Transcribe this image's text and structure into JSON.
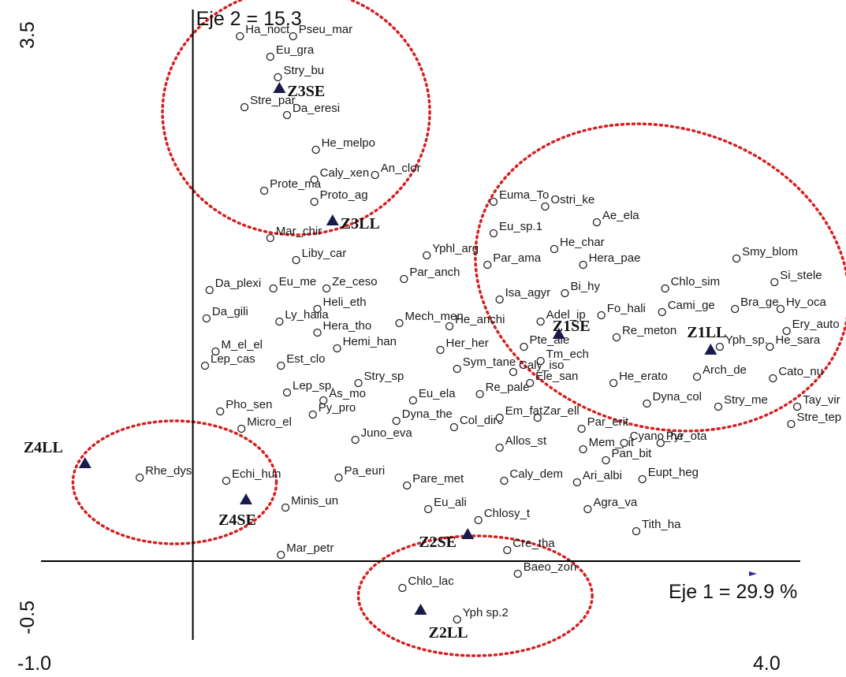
{
  "chart_data": {
    "type": "scatter",
    "x_axis": {
      "title": "Eje 1 = 29.9 %",
      "min": -1.0,
      "max": 4.0,
      "tick_labels": [
        "-1.0",
        "4.0"
      ]
    },
    "y_axis": {
      "title": "Eje 2 = 15.3",
      "min": -0.5,
      "max": 3.5,
      "tick_labels": [
        "-0.5",
        "3.5"
      ]
    },
    "grid": false,
    "colors": {
      "species_marker": "#222222",
      "site_marker": "#1a1a4d",
      "group_outline": "#d42020"
    },
    "sites": [
      {
        "label": "Z1LL",
        "x": 3.41,
        "y": 1.34
      },
      {
        "label": "Z1SE",
        "x": 2.41,
        "y": 1.44
      },
      {
        "label": "Z2LL",
        "x": 1.5,
        "y": -0.31
      },
      {
        "label": "Z2SE",
        "x": 1.81,
        "y": 0.17
      },
      {
        "label": "Z3LL",
        "x": 0.92,
        "y": 2.16
      },
      {
        "label": "Z3SE",
        "x": 0.57,
        "y": 3.0
      },
      {
        "label": "Z4LL",
        "x": -0.71,
        "y": 0.62
      },
      {
        "label": "Z4SE",
        "x": 0.35,
        "y": 0.39
      }
    ],
    "species": [
      {
        "label": "Ha_noct",
        "x": 0.31,
        "y": 3.33
      },
      {
        "label": "Pseu_mar",
        "x": 0.66,
        "y": 3.33
      },
      {
        "label": "Eu_gra",
        "x": 0.51,
        "y": 3.2
      },
      {
        "label": "Stry_bu",
        "x": 0.56,
        "y": 3.07
      },
      {
        "label": "Stre_par",
        "x": 0.34,
        "y": 2.88
      },
      {
        "label": "Da_eresi",
        "x": 0.62,
        "y": 2.83
      },
      {
        "label": "He_melpo",
        "x": 0.81,
        "y": 2.61
      },
      {
        "label": "Prote_ma",
        "x": 0.47,
        "y": 2.35
      },
      {
        "label": "Caly_xen",
        "x": 0.8,
        "y": 2.42
      },
      {
        "label": "An_clor",
        "x": 1.2,
        "y": 2.45
      },
      {
        "label": "Proto_ag",
        "x": 0.8,
        "y": 2.28
      },
      {
        "label": "Mar_chir",
        "x": 0.51,
        "y": 2.05
      },
      {
        "label": "Liby_car",
        "x": 0.68,
        "y": 1.91
      },
      {
        "label": "Da_plexi",
        "x": 0.11,
        "y": 1.72
      },
      {
        "label": "Eu_me",
        "x": 0.53,
        "y": 1.73
      },
      {
        "label": "Ze_ceso",
        "x": 0.88,
        "y": 1.73
      },
      {
        "label": "Par_anch",
        "x": 1.39,
        "y": 1.79
      },
      {
        "label": "Da_gili",
        "x": 0.09,
        "y": 1.54
      },
      {
        "label": "Ly_halia",
        "x": 0.57,
        "y": 1.52
      },
      {
        "label": "Heli_eth",
        "x": 0.82,
        "y": 1.6
      },
      {
        "label": "Hera_tho",
        "x": 0.82,
        "y": 1.45
      },
      {
        "label": "M_el_el",
        "x": 0.15,
        "y": 1.33
      },
      {
        "label": "Lep_cas",
        "x": 0.08,
        "y": 1.24
      },
      {
        "label": "Hemi_han",
        "x": 0.95,
        "y": 1.35
      },
      {
        "label": "Est_clo",
        "x": 0.58,
        "y": 1.24
      },
      {
        "label": "Lep_sp.",
        "x": 0.62,
        "y": 1.07
      },
      {
        "label": "Pho_sen",
        "x": 0.18,
        "y": 0.95
      },
      {
        "label": "Py_pro",
        "x": 0.79,
        "y": 0.93
      },
      {
        "label": "Micro_el",
        "x": 0.32,
        "y": 0.84
      },
      {
        "label": "As_mo",
        "x": 0.86,
        "y": 1.02
      },
      {
        "label": "Stry_sp",
        "x": 1.09,
        "y": 1.13
      },
      {
        "label": "Mech_men",
        "x": 1.36,
        "y": 1.51
      },
      {
        "label": "He_anchi",
        "x": 1.69,
        "y": 1.49
      },
      {
        "label": "Her_her",
        "x": 1.63,
        "y": 1.34
      },
      {
        "label": "Sym_tane",
        "x": 1.74,
        "y": 1.22
      },
      {
        "label": "Caly_iso",
        "x": 2.11,
        "y": 1.2
      },
      {
        "label": "Eu_ela",
        "x": 1.45,
        "y": 1.02
      },
      {
        "label": "Re_pale",
        "x": 1.89,
        "y": 1.06
      },
      {
        "label": "Dyna_the",
        "x": 1.34,
        "y": 0.89
      },
      {
        "label": "Col_dirc",
        "x": 1.72,
        "y": 0.85
      },
      {
        "label": "Juno_eva",
        "x": 1.07,
        "y": 0.77
      },
      {
        "label": "Em_fat",
        "x": 2.02,
        "y": 0.91
      },
      {
        "label": "Zar_ell",
        "x": 2.27,
        "y": 0.91
      },
      {
        "label": "Allos_st",
        "x": 2.02,
        "y": 0.72
      },
      {
        "label": "Par_erit",
        "x": 2.56,
        "y": 0.84
      },
      {
        "label": "Mem_pit",
        "x": 2.57,
        "y": 0.71
      },
      {
        "label": "Cyano_he",
        "x": 2.84,
        "y": 0.75
      },
      {
        "label": "Pan_bit",
        "x": 2.72,
        "y": 0.64
      },
      {
        "label": "Eupt_heg",
        "x": 2.96,
        "y": 0.52
      },
      {
        "label": "Pa_euri",
        "x": 0.96,
        "y": 0.53
      },
      {
        "label": "Pare_met",
        "x": 1.41,
        "y": 0.48
      },
      {
        "label": "Caly_dem",
        "x": 2.05,
        "y": 0.51
      },
      {
        "label": "Ari_albi",
        "x": 2.53,
        "y": 0.5
      },
      {
        "label": "Minis_un",
        "x": 0.61,
        "y": 0.34
      },
      {
        "label": "Eu_ali",
        "x": 1.55,
        "y": 0.33
      },
      {
        "label": "Chlosy_t",
        "x": 1.88,
        "y": 0.26
      },
      {
        "label": "Agra_va",
        "x": 2.6,
        "y": 0.33
      },
      {
        "label": "Tith_ha",
        "x": 2.92,
        "y": 0.19
      },
      {
        "label": "Mar_petr",
        "x": 0.58,
        "y": 0.04
      },
      {
        "label": "Cre_tha",
        "x": 2.07,
        "y": 0.07
      },
      {
        "label": "Baeo_zon",
        "x": 2.14,
        "y": -0.08
      },
      {
        "label": "Chlo_lac",
        "x": 1.38,
        "y": -0.17
      },
      {
        "label": "Yph sp.2",
        "x": 1.74,
        "y": -0.37
      },
      {
        "label": "Rhe_dys",
        "x": -0.35,
        "y": 0.53
      },
      {
        "label": "Echi_hun",
        "x": 0.22,
        "y": 0.51
      },
      {
        "label": "Euma_To",
        "x": 1.98,
        "y": 2.28
      },
      {
        "label": "Ostri_ke",
        "x": 2.32,
        "y": 2.25
      },
      {
        "label": "Ae_ela",
        "x": 2.66,
        "y": 2.15
      },
      {
        "label": "Eu_sp.1",
        "x": 1.98,
        "y": 2.08
      },
      {
        "label": "He_char",
        "x": 2.38,
        "y": 1.98
      },
      {
        "label": "Yphl_arg",
        "x": 1.54,
        "y": 1.94
      },
      {
        "label": "Par_ama",
        "x": 1.94,
        "y": 1.88
      },
      {
        "label": "Hera_pae",
        "x": 2.57,
        "y": 1.88
      },
      {
        "label": "Smy_blom",
        "x": 3.58,
        "y": 1.92
      },
      {
        "label": "Chlo_sim",
        "x": 3.11,
        "y": 1.73
      },
      {
        "label": "Si_stele",
        "x": 3.83,
        "y": 1.77
      },
      {
        "label": "Bi_hy",
        "x": 2.45,
        "y": 1.7
      },
      {
        "label": "Isa_agyr",
        "x": 2.02,
        "y": 1.66
      },
      {
        "label": "Cami_ge",
        "x": 3.09,
        "y": 1.58
      },
      {
        "label": "Bra_ge",
        "x": 3.57,
        "y": 1.6
      },
      {
        "label": "Hy_oca",
        "x": 3.87,
        "y": 1.6
      },
      {
        "label": "Fo_hali",
        "x": 2.69,
        "y": 1.56
      },
      {
        "label": "Adel_ip",
        "x": 2.29,
        "y": 1.52
      },
      {
        "label": "Ery_auto",
        "x": 3.91,
        "y": 1.46
      },
      {
        "label": "Re_meton",
        "x": 2.79,
        "y": 1.42
      },
      {
        "label": "Pte_ale",
        "x": 2.18,
        "y": 1.36
      },
      {
        "label": "Yph_sp.",
        "x": 3.47,
        "y": 1.36
      },
      {
        "label": "He_sara",
        "x": 3.8,
        "y": 1.36
      },
      {
        "label": "Tm_ech",
        "x": 2.29,
        "y": 1.27
      },
      {
        "label": "Arch_de",
        "x": 3.32,
        "y": 1.17
      },
      {
        "label": "Cato_nu",
        "x": 3.82,
        "y": 1.16
      },
      {
        "label": "He_erato",
        "x": 2.77,
        "y": 1.13
      },
      {
        "label": "Ele_san",
        "x": 2.22,
        "y": 1.13
      },
      {
        "label": "Dyna_col",
        "x": 2.99,
        "y": 1.0
      },
      {
        "label": "Stry_me",
        "x": 3.46,
        "y": 0.98
      },
      {
        "label": "Tay_vir",
        "x": 3.98,
        "y": 0.98
      },
      {
        "label": "Stre_tep",
        "x": 3.94,
        "y": 0.87
      },
      {
        "label": "Pyr_ota",
        "x": 3.08,
        "y": 0.75
      }
    ],
    "groups": [
      {
        "cx": 0.68,
        "cy": 2.85,
        "rx": 0.88,
        "ry": 0.78
      },
      {
        "cx": 3.09,
        "cy": 1.8,
        "rx": 1.25,
        "ry": 0.95,
        "rotate": 17
      },
      {
        "cx": -0.12,
        "cy": 0.5,
        "rx": 0.67,
        "ry": 0.39
      },
      {
        "cx": 1.86,
        "cy": -0.22,
        "rx": 0.77,
        "ry": 0.38
      }
    ]
  }
}
